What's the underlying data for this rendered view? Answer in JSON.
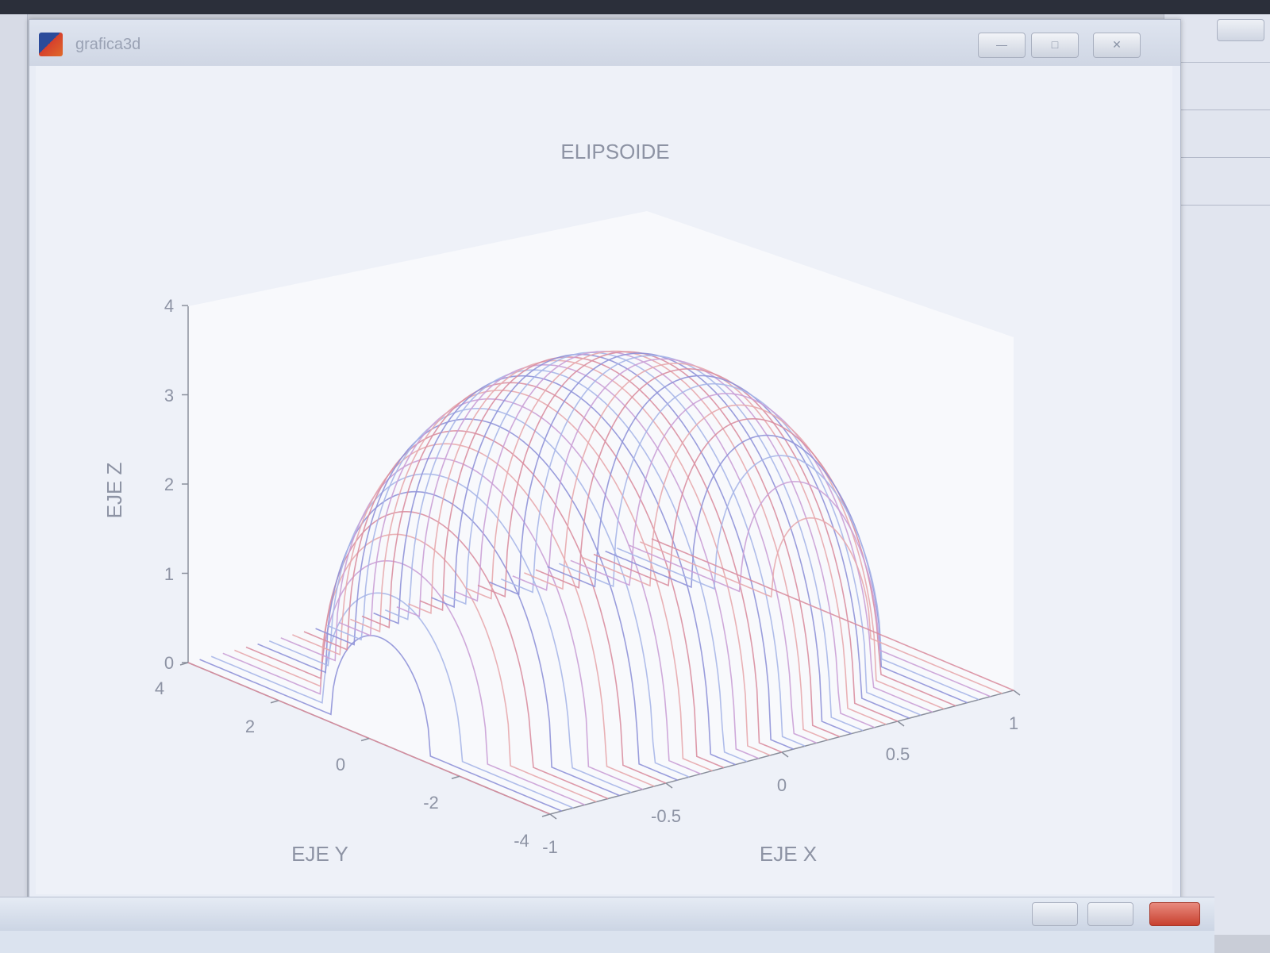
{
  "window": {
    "title": "grafica3d"
  },
  "chart_data": {
    "type": "surface-mesh",
    "title": "ELIPSOIDE",
    "xlabel": "EJE X",
    "ylabel": "EJE Y",
    "zlabel": "EJE Z",
    "xticks": [
      "-1",
      "-0.5",
      "0",
      "0.5",
      "1"
    ],
    "yticks": [
      "-4",
      "-2",
      "0",
      "2",
      "4"
    ],
    "zticks": [
      "0",
      "1",
      "2",
      "3",
      "4"
    ],
    "xlim": [
      -1,
      1
    ],
    "ylim": [
      -4,
      4
    ],
    "zlim": [
      0,
      4
    ],
    "surface": "z = 3.5 * sqrt(1 - x^2 - (y/3.5)^2), z = 0 outside the ellipse",
    "colors": [
      "#d98ea0",
      "#8f92d8",
      "#a7b6e8",
      "#caa0d6",
      "#e7a8ad"
    ]
  }
}
